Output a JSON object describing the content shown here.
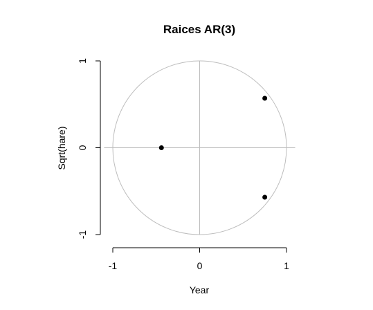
{
  "chart_data": {
    "type": "scatter",
    "title": "Raices AR(3)",
    "xlabel": "Year",
    "ylabel": "Sqrt(hare)",
    "xlim": [
      -1,
      1
    ],
    "ylim": [
      -1,
      1
    ],
    "xticks": [
      -1,
      0,
      1
    ],
    "yticks": [
      -1,
      0,
      1
    ],
    "xtick_labels": [
      "-1",
      "0",
      "1"
    ],
    "ytick_labels": [
      "-1",
      "0",
      "1"
    ],
    "grid": false,
    "unit_circle": true,
    "reference_lines": {
      "x": 0,
      "y": 0
    },
    "points": [
      {
        "x": 0.75,
        "y": 0.57
      },
      {
        "x": -0.44,
        "y": 0.0
      },
      {
        "x": 0.75,
        "y": -0.57
      }
    ],
    "colors": {
      "points": "#000000",
      "circle": "#bdbdbd",
      "reference": "#bdbdbd"
    }
  }
}
